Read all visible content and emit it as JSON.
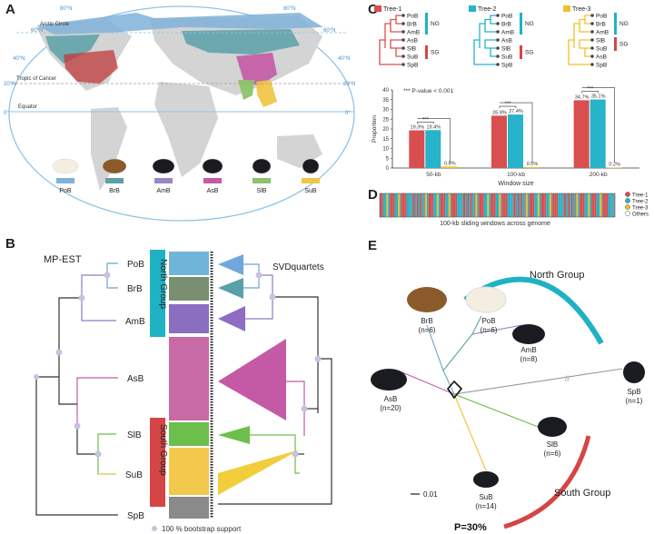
{
  "panels": {
    "a": {
      "label": "A"
    },
    "b": {
      "label": "B"
    },
    "c": {
      "label": "C"
    },
    "d": {
      "label": "D"
    },
    "e": {
      "label": "E"
    }
  },
  "map": {
    "lat_labels_left": [
      "80°N",
      "60°N",
      "40°N",
      "20°N",
      "0°"
    ],
    "lat_labels_right": [
      "80°N",
      "60°N",
      "40°N",
      "20°N",
      "0°"
    ],
    "lines": {
      "arctic": "Arctic Circle",
      "cancer": "Tropic of Cancer",
      "equator": "Equator"
    },
    "bears": [
      {
        "code": "PoB",
        "color": "#7fb2d8"
      },
      {
        "code": "BrB",
        "color": "#5aa0a8"
      },
      {
        "code": "AmB",
        "color": "#9a86c4"
      },
      {
        "code": "AsB",
        "color": "#c45aa5"
      },
      {
        "code": "SlB",
        "color": "#8cc36a"
      },
      {
        "code": "SuB",
        "color": "#f0c64a"
      }
    ]
  },
  "tree_b": {
    "left_title": "MP-EST",
    "right_title": "SVDquartets",
    "taxa": [
      "PoB",
      "BrB",
      "AmB",
      "AsB",
      "SlB",
      "SuB",
      "SpB"
    ],
    "north_label": "North Group",
    "south_label": "South Group",
    "footnote": "100 % bootstrap support"
  },
  "trees_c": {
    "t1": {
      "name": "Tree-1",
      "color": "#d94e4e",
      "taxa": [
        "PoB",
        "BrB",
        "AmB",
        "AsB",
        "SlB",
        "SuB",
        "SpB"
      ]
    },
    "t2": {
      "name": "Tree-2",
      "color": "#27b3c9",
      "taxa": [
        "PoB",
        "BrB",
        "AmB",
        "AsB",
        "SlB",
        "SuB",
        "SpB"
      ]
    },
    "t3": {
      "name": "Tree-3",
      "color": "#f0c02a",
      "taxa": [
        "PoB",
        "BrB",
        "AmB",
        "SlB",
        "SuB",
        "AsB",
        "SpB"
      ]
    },
    "ng": "NG",
    "sg": "SG"
  },
  "chart_data": {
    "type": "bar",
    "categories": [
      "50-kb",
      "100-kb",
      "200-kb"
    ],
    "series": [
      {
        "name": "Tree-1",
        "color": "#d94e4e",
        "values": [
          19.3,
          26.8,
          34.7
        ]
      },
      {
        "name": "Tree-2",
        "color": "#27b3c9",
        "values": [
          19.4,
          27.4,
          35.1
        ]
      },
      {
        "name": "Tree-3",
        "color": "#f0c02a",
        "values": [
          0.8,
          0.5,
          0.2
        ]
      }
    ],
    "value_labels": [
      [
        "19.3%",
        "19.4%",
        "0.8%"
      ],
      [
        "26.8%",
        "27.4%",
        "0.5%"
      ],
      [
        "34.7%",
        "35.1%",
        "0.2%"
      ]
    ],
    "ylabel": "Proportion",
    "xlabel": "Window size",
    "ylim": [
      0,
      40
    ],
    "yticks": [
      "0",
      "5",
      "10",
      "15",
      "20",
      "25",
      "30",
      "35",
      "40"
    ],
    "annotation": "*** P-value < 0.001",
    "sig": "***"
  },
  "panel_d": {
    "caption": "100-kb sliding windows across genome",
    "legend": [
      {
        "name": "Tree-1",
        "color": "#d94e4e"
      },
      {
        "name": "Tree-2",
        "color": "#27b3c9"
      },
      {
        "name": "Tree-3",
        "color": "#f0c02a"
      },
      {
        "name": "Others",
        "color": "#ffffff"
      }
    ]
  },
  "panel_e": {
    "north": "North Group",
    "south": "South Group",
    "scale": "0.01",
    "p_value": "P=30%",
    "taxa": [
      {
        "code": "BrB",
        "n": "(n=6)"
      },
      {
        "code": "PoB",
        "n": "(n=6)"
      },
      {
        "code": "AmB",
        "n": "(n=8)"
      },
      {
        "code": "AsB",
        "n": "(n=20)"
      },
      {
        "code": "SpB",
        "n": "(n=1)"
      },
      {
        "code": "SlB",
        "n": "(n=6)"
      },
      {
        "code": "SuB",
        "n": "(n=14)"
      }
    ]
  }
}
